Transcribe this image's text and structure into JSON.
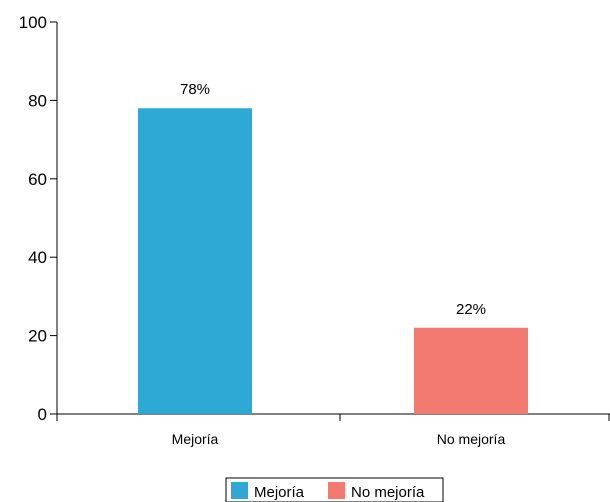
{
  "chart_data": {
    "type": "bar",
    "categories": [
      "Mejoría",
      "No mejoría"
    ],
    "values": [
      78,
      22
    ],
    "data_labels": [
      "78%",
      "22%"
    ],
    "colors": [
      "#2ea8d4",
      "#f27a70"
    ],
    "yticks": [
      "0",
      "20",
      "40",
      "60",
      "80",
      "100"
    ],
    "ylim": [
      0,
      100
    ],
    "title": "",
    "xlabel": "",
    "ylabel": "",
    "grid": false,
    "legend": {
      "placement": "bottom-center",
      "entries": [
        "Mejoría",
        "No mejoría"
      ]
    }
  }
}
